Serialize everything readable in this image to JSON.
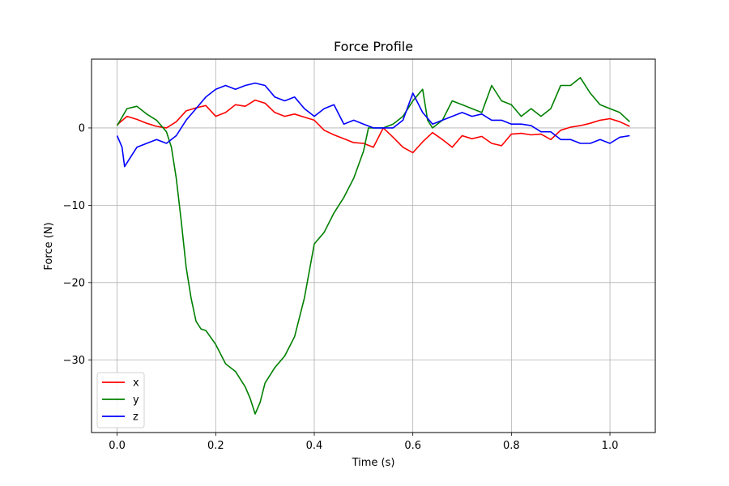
{
  "chart_data": {
    "type": "line",
    "title": "Force Profile",
    "xlabel": "Time (s)",
    "ylabel": "Force (N)",
    "xlim": [
      -0.052,
      1.092
    ],
    "ylim": [
      -39.4,
      8.9
    ],
    "x_ticks": [
      0.0,
      0.2,
      0.4,
      0.6,
      0.8,
      1.0
    ],
    "x_tick_labels": [
      "0.0",
      "0.2",
      "0.4",
      "0.6",
      "0.8",
      "1.0"
    ],
    "y_ticks": [
      0,
      -10,
      -20,
      -30
    ],
    "y_tick_labels": [
      "0",
      "−10",
      "−20",
      "−30"
    ],
    "grid": true,
    "legend_position": "lower-left",
    "colors": {
      "x": "#ff0000",
      "y": "#008000",
      "z": "#0000ff"
    },
    "series": [
      {
        "name": "x",
        "color": "#ff0000",
        "x": [
          0.0,
          0.02,
          0.04,
          0.06,
          0.08,
          0.1,
          0.12,
          0.14,
          0.16,
          0.18,
          0.2,
          0.22,
          0.24,
          0.26,
          0.28,
          0.3,
          0.32,
          0.34,
          0.36,
          0.38,
          0.4,
          0.42,
          0.44,
          0.46,
          0.48,
          0.5,
          0.52,
          0.54,
          0.56,
          0.58,
          0.6,
          0.62,
          0.64,
          0.66,
          0.68,
          0.7,
          0.72,
          0.74,
          0.76,
          0.78,
          0.8,
          0.82,
          0.84,
          0.86,
          0.88,
          0.9,
          0.92,
          0.94,
          0.96,
          0.98,
          1.0,
          1.02,
          1.04
        ],
        "y": [
          0.4,
          1.5,
          1.1,
          0.6,
          0.2,
          0.0,
          0.8,
          2.2,
          2.6,
          2.9,
          1.5,
          2.0,
          3.0,
          2.8,
          3.6,
          3.2,
          2.0,
          1.5,
          1.8,
          1.4,
          1.0,
          -0.3,
          -0.9,
          -1.4,
          -1.9,
          -2.0,
          -2.5,
          0.0,
          -1.2,
          -2.5,
          -3.2,
          -1.8,
          -0.6,
          -1.5,
          -2.5,
          -1.0,
          -1.4,
          -1.1,
          -2.0,
          -2.3,
          -0.8,
          -0.7,
          -0.9,
          -0.8,
          -1.5,
          -0.3,
          0.1,
          0.3,
          0.6,
          1.0,
          1.2,
          0.8,
          0.2
        ]
      },
      {
        "name": "y",
        "color": "#008000",
        "x": [
          0.0,
          0.02,
          0.04,
          0.06,
          0.08,
          0.1,
          0.11,
          0.12,
          0.13,
          0.14,
          0.15,
          0.16,
          0.17,
          0.18,
          0.2,
          0.22,
          0.24,
          0.26,
          0.27,
          0.28,
          0.29,
          0.3,
          0.32,
          0.34,
          0.36,
          0.38,
          0.4,
          0.42,
          0.44,
          0.46,
          0.48,
          0.5,
          0.51,
          0.52,
          0.54,
          0.56,
          0.58,
          0.6,
          0.62,
          0.63,
          0.64,
          0.66,
          0.68,
          0.7,
          0.72,
          0.74,
          0.76,
          0.78,
          0.8,
          0.82,
          0.84,
          0.86,
          0.88,
          0.9,
          0.92,
          0.94,
          0.96,
          0.98,
          1.0,
          1.02,
          1.04
        ],
        "y": [
          0.3,
          2.5,
          2.8,
          1.8,
          1.0,
          -0.5,
          -2.5,
          -6.5,
          -12.0,
          -18.0,
          -22.0,
          -25.0,
          -26.0,
          -26.2,
          -28.0,
          -30.5,
          -31.5,
          -33.5,
          -35.0,
          -37.0,
          -35.5,
          -33.0,
          -31.0,
          -29.5,
          -27.0,
          -22.0,
          -15.0,
          -13.5,
          -11.0,
          -9.0,
          -6.5,
          -3.0,
          0.0,
          0.0,
          0.0,
          0.5,
          1.5,
          3.5,
          5.0,
          1.0,
          0.0,
          1.0,
          3.5,
          3.0,
          2.5,
          2.0,
          5.5,
          3.5,
          3.0,
          1.5,
          2.5,
          1.5,
          2.5,
          5.5,
          5.5,
          6.5,
          4.5,
          3.0,
          2.5,
          2.0,
          0.8
        ]
      },
      {
        "name": "z",
        "color": "#0000ff",
        "x": [
          0.0,
          0.01,
          0.015,
          0.02,
          0.04,
          0.06,
          0.08,
          0.1,
          0.12,
          0.14,
          0.16,
          0.18,
          0.2,
          0.22,
          0.24,
          0.26,
          0.28,
          0.3,
          0.32,
          0.34,
          0.36,
          0.38,
          0.4,
          0.42,
          0.44,
          0.46,
          0.48,
          0.5,
          0.52,
          0.54,
          0.56,
          0.58,
          0.6,
          0.62,
          0.64,
          0.66,
          0.68,
          0.7,
          0.72,
          0.74,
          0.76,
          0.78,
          0.8,
          0.82,
          0.84,
          0.86,
          0.88,
          0.9,
          0.92,
          0.94,
          0.96,
          0.98,
          1.0,
          1.02,
          1.04
        ],
        "y": [
          -1.0,
          -2.5,
          -5.0,
          -4.5,
          -2.5,
          -2.0,
          -1.5,
          -2.0,
          -1.0,
          1.0,
          2.5,
          4.0,
          5.0,
          5.5,
          5.0,
          5.5,
          5.8,
          5.5,
          4.0,
          3.5,
          4.0,
          2.5,
          1.5,
          2.5,
          3.0,
          0.5,
          1.0,
          0.5,
          0.0,
          0.0,
          0.0,
          1.0,
          4.5,
          2.0,
          0.5,
          1.0,
          1.5,
          2.0,
          1.5,
          1.8,
          1.0,
          1.0,
          0.5,
          0.5,
          0.3,
          -0.5,
          -0.5,
          -1.5,
          -1.5,
          -2.0,
          -2.0,
          -1.5,
          -2.0,
          -1.2,
          -1.0
        ]
      }
    ]
  }
}
